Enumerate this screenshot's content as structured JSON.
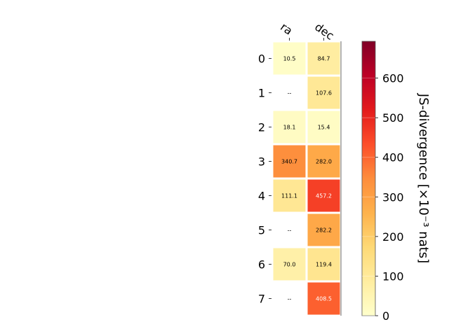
{
  "chart_data": {
    "type": "heatmap",
    "columns": [
      "ra",
      "dec"
    ],
    "rows": [
      "0",
      "1",
      "2",
      "3",
      "4",
      "5",
      "6",
      "7"
    ],
    "values": [
      [
        10.5,
        84.7
      ],
      [
        null,
        107.6
      ],
      [
        18.1,
        15.4
      ],
      [
        340.7,
        282.0
      ],
      [
        111.1,
        457.2
      ],
      [
        null,
        282.2
      ],
      [
        70.0,
        119.4
      ],
      [
        null,
        408.5
      ]
    ],
    "cell_labels": [
      [
        "10.5",
        "84.7"
      ],
      [
        "--",
        "107.6"
      ],
      [
        "18.1",
        "15.4"
      ],
      [
        "340.7",
        "282.0"
      ],
      [
        "111.1",
        "457.2"
      ],
      [
        "--",
        "282.2"
      ],
      [
        "70.0",
        "119.4"
      ],
      [
        "--",
        "408.5"
      ]
    ],
    "missing_label": "--",
    "colorbar": {
      "label": "JS-divergence [×10⁻³ nats]",
      "min": 0,
      "max": 693,
      "ticks": [
        0,
        100,
        200,
        300,
        400,
        500,
        600
      ],
      "colormap": "YlOrRd"
    }
  }
}
